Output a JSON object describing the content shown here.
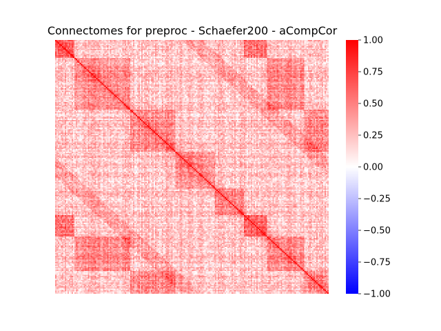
{
  "chart_data": {
    "type": "heatmap",
    "title": "Connectomes for preproc - Schaefer200 - aCompCor",
    "matrix_size": 200,
    "diagonal_value": 1.0,
    "value_range": [
      -1.0,
      1.0
    ],
    "colormap": {
      "name": "bwr",
      "low_color": "#0000ff",
      "mid_color": "#ffffff",
      "high_color": "#ff0000"
    },
    "colorbar": {
      "ticks": [
        1.0,
        0.75,
        0.5,
        0.25,
        0.0,
        -0.25,
        -0.5,
        -0.75,
        -1.0
      ],
      "tick_labels": [
        "1.00",
        "0.75",
        "0.50",
        "0.25",
        "0.00",
        "−0.25",
        "−0.50",
        "−0.75",
        "−1.00"
      ]
    },
    "xlabel": "",
    "ylabel": "",
    "axis_tick_labels_shown": false,
    "grid": false
  }
}
